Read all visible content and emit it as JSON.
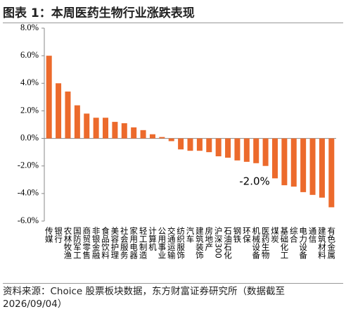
{
  "chart_data": {
    "type": "bar",
    "title": "图表 1：本周医药生物行业涨跌表现",
    "categories": [
      "传媒",
      "银行",
      "农林牧渔",
      "国防军工",
      "商贸零售",
      "非银金融",
      "食品饮料",
      "美容护理",
      "社会服务",
      "家用电器",
      "轻工制造",
      "计算机",
      "公用事业",
      "交通运输",
      "纺织服饰",
      "汽车",
      "建筑装饰",
      "房地产",
      "沪深300",
      "石油石化",
      "钢铁",
      "环保",
      "机械设备",
      "医药生物",
      "煤炭",
      "基础化工",
      "综合",
      "电力设备",
      "通信",
      "建筑材料",
      "有色金属"
    ],
    "values": [
      6.0,
      4.0,
      3.4,
      2.4,
      1.8,
      1.5,
      1.5,
      1.2,
      1.1,
      0.8,
      0.6,
      0.3,
      0.1,
      -0.2,
      -0.8,
      -0.9,
      -0.9,
      -1.0,
      -1.3,
      -1.4,
      -1.6,
      -1.7,
      -1.8,
      -2.0,
      -2.9,
      -3.4,
      -3.5,
      -3.9,
      -4.1,
      -4.3,
      -5.0
    ],
    "color": "#ec6a2c",
    "ylim": [
      -6,
      8
    ],
    "yticks": [
      {
        "value": -6,
        "label": "-6.0%"
      },
      {
        "value": -4,
        "label": "-4.0%"
      },
      {
        "value": -2,
        "label": "-2.0%"
      },
      {
        "value": 0,
        "label": "0.0%"
      },
      {
        "value": 2,
        "label": "2.0%"
      },
      {
        "value": 4,
        "label": "4.0%"
      },
      {
        "value": 6,
        "label": "6.0%"
      },
      {
        "value": 8,
        "label": "8.0%"
      }
    ],
    "annotation": "-2.0%",
    "source": "资料来源：Choice 股票板块数据，东方财富证券研究所（数据截至2026/09/04）"
  }
}
